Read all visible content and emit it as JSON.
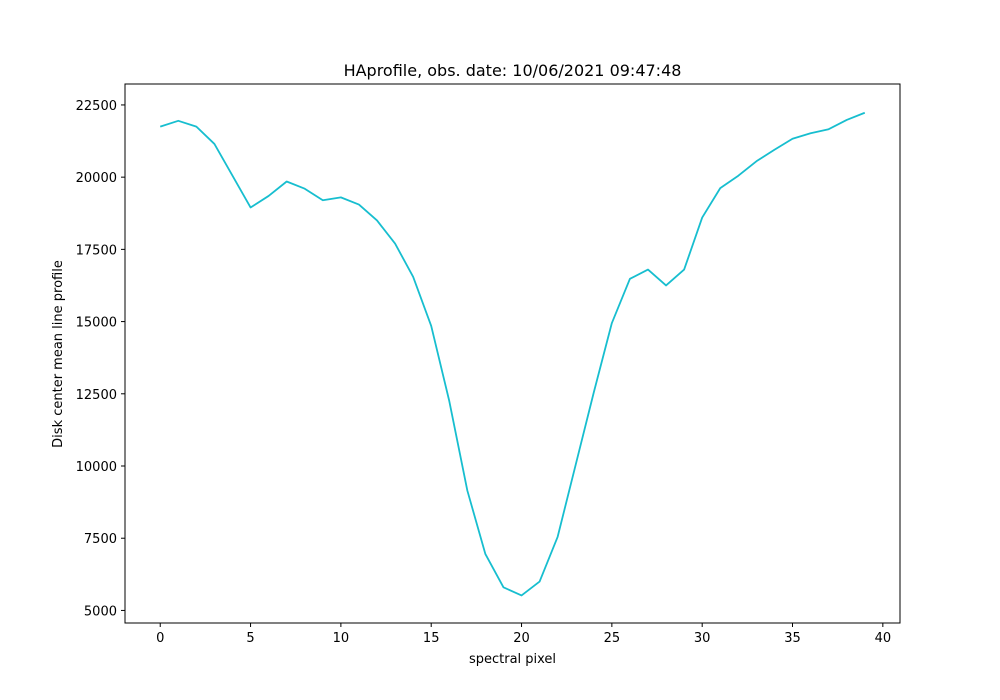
{
  "chart_data": {
    "type": "line",
    "title": "HAprofile, obs. date: 10/06/2021 09:47:48",
    "xlabel": "spectral pixel",
    "ylabel": "Disk center mean line profile",
    "xlim": [
      -1.95,
      40.95
    ],
    "ylim": [
      4565,
      23225
    ],
    "xticks": [
      0,
      5,
      10,
      15,
      20,
      25,
      30,
      35,
      40
    ],
    "yticks": [
      5000,
      7500,
      10000,
      12500,
      15000,
      17500,
      20000,
      22500
    ],
    "grid": false,
    "legend": "none",
    "series": [
      {
        "color": "#17becf",
        "x": [
          0,
          1,
          2,
          3,
          4,
          5,
          6,
          7,
          8,
          9,
          10,
          11,
          12,
          13,
          14,
          15,
          16,
          17,
          18,
          19,
          20,
          21,
          22,
          23,
          24,
          25,
          26,
          27,
          28,
          29,
          30,
          31,
          32,
          33,
          34,
          35,
          36,
          37,
          38,
          39
        ],
        "y": [
          21750,
          21950,
          21750,
          21150,
          20050,
          18950,
          19350,
          19850,
          19600,
          19200,
          19300,
          19050,
          18500,
          17700,
          16550,
          14850,
          12250,
          9150,
          6950,
          5800,
          5520,
          6000,
          7550,
          10050,
          12550,
          14950,
          16480,
          16800,
          16250,
          16800,
          18600,
          19620,
          20050,
          20550,
          20950,
          21330,
          21520,
          21660,
          21980,
          22230
        ]
      }
    ]
  }
}
